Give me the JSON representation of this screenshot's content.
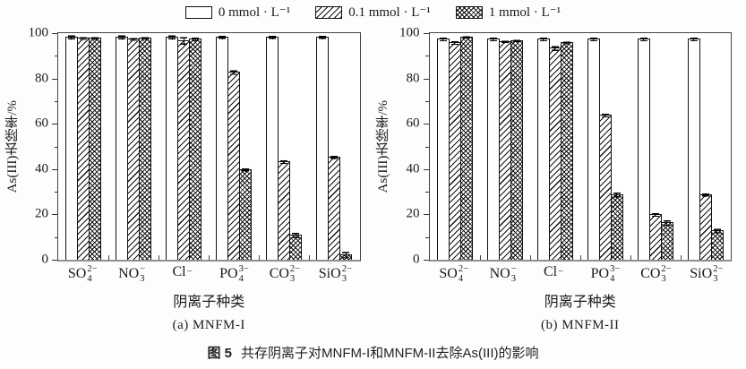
{
  "legend": {
    "items": [
      {
        "label": "0 mmol · L⁻¹",
        "pattern": "plain"
      },
      {
        "label": "0.1 mmol · L⁻¹",
        "pattern": "hatch"
      },
      {
        "label": "1 mmol · L⁻¹",
        "pattern": "crosshatch"
      }
    ]
  },
  "caption": {
    "label": "图 5",
    "text": "共存阴离子对MNFM-I和MNFM-II去除As(III)的影响"
  },
  "chart_data": {
    "type": "bar",
    "grid": false,
    "legend_position": "top",
    "ylim": [
      0,
      100
    ],
    "yticks_major": [
      0,
      20,
      40,
      60,
      80,
      100
    ],
    "yticks_minor": [
      10,
      30,
      50,
      70,
      90
    ],
    "categories": [
      {
        "base": "SO",
        "sub": "4",
        "sup": "2−"
      },
      {
        "base": "NO",
        "sub": "3",
        "sup": "−"
      },
      {
        "base": "Cl",
        "sub": "",
        "sup": "−"
      },
      {
        "base": "PO",
        "sub": "4",
        "sup": "3−"
      },
      {
        "base": "CO",
        "sub": "3",
        "sup": "2−"
      },
      {
        "base": "SiO",
        "sub": "3",
        "sup": "2−"
      }
    ],
    "panels": [
      {
        "subtitle": "(a) MNFM-I",
        "ylabel": "As(III)去除率/%",
        "xlabel": "阴离子种类",
        "series": [
          {
            "name": "0 mmol · L⁻¹",
            "pattern": "plain",
            "values": [
              98.5,
              98.5,
              98.5,
              98.5,
              98.5,
              98.5
            ],
            "errors": [
              1,
              1,
              1,
              0.8,
              0.8,
              0.8
            ]
          },
          {
            "name": "0.1 mmol · L⁻¹",
            "pattern": "hatch",
            "values": [
              98,
              97.5,
              97,
              83,
              43.5,
              45.5
            ],
            "errors": [
              0.6,
              0.6,
              1.8,
              1,
              0.8,
              0.8
            ]
          },
          {
            "name": "1 mmol · L⁻¹",
            "pattern": "crosshatch",
            "values": [
              98,
              98,
              97.5,
              40,
              11,
              2.5
            ],
            "errors": [
              0.6,
              0.6,
              0.8,
              0.8,
              1.2,
              1.5
            ]
          }
        ]
      },
      {
        "subtitle": "(b) MNFM-II",
        "ylabel": "As(III)去除率/%",
        "xlabel": "阴离子种类",
        "series": [
          {
            "name": "0 mmol · L⁻¹",
            "pattern": "plain",
            "values": [
              97.5,
              97.5,
              97.5,
              97.5,
              97.5,
              97.5
            ],
            "errors": [
              0.8,
              0.8,
              0.8,
              0.8,
              0.8,
              0.8
            ]
          },
          {
            "name": "0.1 mmol · L⁻¹",
            "pattern": "hatch",
            "values": [
              96,
              96.5,
              93.5,
              64,
              20,
              29
            ],
            "errors": [
              0.8,
              0.6,
              1,
              0.8,
              0.8,
              0.8
            ]
          },
          {
            "name": "1 mmol · L⁻¹",
            "pattern": "crosshatch",
            "values": [
              98.5,
              97,
              96,
              29,
              16.5,
              13
            ],
            "errors": [
              0.6,
              0.6,
              0.6,
              1.2,
              1.2,
              1
            ]
          }
        ]
      }
    ]
  },
  "colors": {
    "ink": "#111111",
    "axis": "#444444",
    "baseline": "#8f8f8f",
    "background": "#ffffff"
  }
}
